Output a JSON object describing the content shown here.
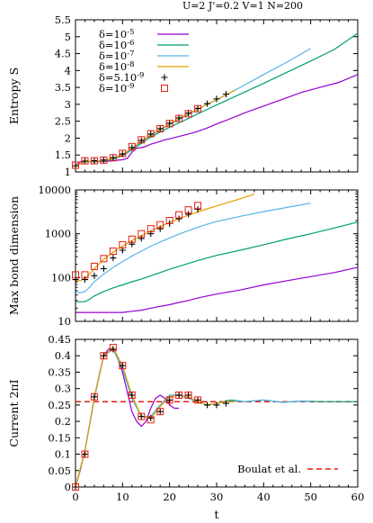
{
  "figure_title": "U=2  J'=0.2  V=1 N=200",
  "colors": {
    "d5": "#9400d3",
    "d6": "#009e73",
    "d7": "#56b4e9",
    "d8": "#e69f00",
    "plus": "#000000",
    "square": "#e51e10",
    "boulat": "#e51e10"
  },
  "chart_data": [
    {
      "type": "line",
      "id": "entropy",
      "ylabel": "Entropy S",
      "xlim": [
        0,
        60
      ],
      "ylim": [
        1,
        5.5
      ],
      "xticks": [],
      "yticks": [
        "1",
        "1.5",
        "2",
        "2.5",
        "3",
        "3.5",
        "4",
        "4.5",
        "5",
        "5.5"
      ],
      "legend": {
        "placement": "top-left",
        "entries": [
          {
            "key": "d5",
            "label_base": "δ=10",
            "label_sup": "-5",
            "style": "line"
          },
          {
            "key": "d6",
            "label_base": "δ=10",
            "label_sup": "-6",
            "style": "line"
          },
          {
            "key": "d7",
            "label_base": "δ=10",
            "label_sup": "-7",
            "style": "line"
          },
          {
            "key": "d8",
            "label_base": "δ=10",
            "label_sup": "-8",
            "style": "line"
          },
          {
            "key": "plus",
            "label_base": "δ=5.10",
            "label_sup": "-9",
            "style": "plus"
          },
          {
            "key": "square",
            "label_base": "δ=10",
            "label_sup": "-9",
            "style": "square"
          }
        ]
      },
      "series": [
        {
          "key": "d5",
          "x": [
            0,
            1,
            2,
            3,
            4,
            5,
            6,
            7,
            8,
            9,
            10,
            11,
            12,
            13,
            14,
            15,
            16,
            17,
            18,
            19,
            20,
            22,
            24,
            26,
            28,
            30,
            33,
            36,
            40,
            44,
            48,
            52,
            56,
            60
          ],
          "y": [
            1.18,
            1.3,
            1.32,
            1.31,
            1.3,
            1.3,
            1.31,
            1.32,
            1.33,
            1.35,
            1.36,
            1.4,
            1.58,
            1.7,
            1.72,
            1.76,
            1.82,
            1.86,
            1.9,
            1.95,
            1.98,
            2.05,
            2.12,
            2.2,
            2.3,
            2.42,
            2.58,
            2.75,
            2.95,
            3.15,
            3.35,
            3.5,
            3.65,
            3.88
          ]
        },
        {
          "key": "d6",
          "x": [
            0,
            2,
            4,
            6,
            8,
            10,
            12,
            14,
            16,
            18,
            20,
            22,
            24,
            26,
            28,
            30,
            35,
            40,
            45,
            50,
            55,
            60
          ],
          "y": [
            1.18,
            1.3,
            1.3,
            1.32,
            1.38,
            1.48,
            1.65,
            1.85,
            2.03,
            2.18,
            2.32,
            2.45,
            2.58,
            2.72,
            2.85,
            2.98,
            3.3,
            3.62,
            3.95,
            4.28,
            4.62,
            5.1
          ]
        },
        {
          "key": "d7",
          "x": [
            0,
            2,
            4,
            6,
            8,
            10,
            12,
            14,
            16,
            18,
            20,
            22,
            24,
            26,
            28,
            30,
            35,
            40,
            45,
            50
          ],
          "y": [
            1.18,
            1.31,
            1.32,
            1.33,
            1.4,
            1.5,
            1.68,
            1.9,
            2.08,
            2.24,
            2.4,
            2.55,
            2.7,
            2.85,
            3.0,
            3.13,
            3.5,
            3.88,
            4.25,
            4.65
          ]
        },
        {
          "key": "d8",
          "x": [
            0,
            2,
            4,
            6,
            8,
            10,
            12,
            14,
            16,
            18,
            20,
            22,
            24,
            26,
            28,
            30,
            32,
            34
          ],
          "y": [
            1.18,
            1.31,
            1.32,
            1.34,
            1.4,
            1.52,
            1.7,
            1.92,
            2.1,
            2.26,
            2.42,
            2.58,
            2.72,
            2.86,
            3.0,
            3.14,
            3.28,
            3.42
          ]
        },
        {
          "key": "plus",
          "style": "plus",
          "x": [
            0,
            2,
            4,
            6,
            8,
            10,
            12,
            14,
            16,
            18,
            20,
            22,
            24,
            26,
            28,
            30,
            32
          ],
          "y": [
            1.18,
            1.32,
            1.33,
            1.35,
            1.42,
            1.53,
            1.72,
            1.93,
            2.12,
            2.28,
            2.44,
            2.6,
            2.74,
            2.88,
            3.02,
            3.16,
            3.3
          ]
        },
        {
          "key": "square",
          "style": "square",
          "x": [
            0,
            2,
            4,
            6,
            8,
            10,
            12,
            14,
            16,
            18,
            20,
            22,
            24,
            26
          ],
          "y": [
            1.2,
            1.33,
            1.33,
            1.35,
            1.42,
            1.55,
            1.75,
            1.95,
            2.13,
            2.28,
            2.43,
            2.58,
            2.72,
            2.87
          ]
        }
      ]
    },
    {
      "type": "line",
      "id": "bond",
      "ylabel": "Max bond dimension",
      "yscale": "log",
      "xlim": [
        0,
        60
      ],
      "ylim": [
        10,
        10000
      ],
      "xticks": [],
      "yticks": [
        "10",
        "100",
        "1000",
        "10000"
      ],
      "ytick_values": [
        10,
        100,
        1000,
        10000
      ],
      "series": [
        {
          "key": "d5",
          "x": [
            0,
            2,
            4,
            6,
            8,
            10,
            12,
            14,
            16,
            18,
            20,
            22,
            24,
            26,
            28,
            30,
            35,
            40,
            45,
            50,
            55,
            60
          ],
          "y": [
            16,
            16,
            16,
            16,
            16,
            16,
            17,
            18,
            20,
            22,
            24,
            27,
            30,
            34,
            38,
            42,
            52,
            68,
            85,
            105,
            130,
            170
          ]
        },
        {
          "key": "d6",
          "x": [
            0,
            1,
            2,
            3,
            4,
            6,
            8,
            10,
            12,
            14,
            16,
            18,
            20,
            22,
            24,
            26,
            28,
            30,
            35,
            40,
            45,
            50,
            55,
            60
          ],
          "y": [
            28,
            28,
            28,
            32,
            38,
            48,
            58,
            68,
            80,
            92,
            110,
            130,
            155,
            180,
            210,
            245,
            280,
            320,
            420,
            560,
            760,
            1000,
            1350,
            1850
          ]
        },
        {
          "key": "d7",
          "x": [
            0,
            1,
            2,
            3,
            4,
            6,
            8,
            10,
            12,
            14,
            16,
            18,
            20,
            22,
            24,
            26,
            28,
            30,
            35,
            40,
            45,
            50
          ],
          "y": [
            45,
            45,
            48,
            60,
            80,
            120,
            170,
            230,
            310,
            400,
            520,
            650,
            800,
            980,
            1180,
            1400,
            1650,
            1900,
            2500,
            3200,
            4000,
            5000
          ]
        },
        {
          "key": "d8",
          "x": [
            0,
            1,
            2,
            3,
            4,
            6,
            8,
            10,
            12,
            14,
            16,
            18,
            20,
            22,
            24,
            26,
            28,
            30,
            32,
            34,
            36,
            38
          ],
          "y": [
            85,
            85,
            95,
            120,
            160,
            260,
            380,
            520,
            700,
            900,
            1150,
            1450,
            1800,
            2200,
            2650,
            3150,
            3700,
            4300,
            5000,
            5800,
            6800,
            8000
          ]
        },
        {
          "key": "plus",
          "style": "plus",
          "x": [
            0,
            2,
            4,
            6,
            8,
            10,
            12,
            14,
            16,
            18,
            20,
            22,
            24,
            26
          ],
          "y": [
            90,
            90,
            110,
            160,
            280,
            420,
            580,
            780,
            1000,
            1300,
            1700,
            2200,
            2800,
            3600
          ]
        },
        {
          "key": "square",
          "style": "square",
          "x": [
            0,
            2,
            4,
            6,
            8,
            10,
            12,
            14,
            16,
            18,
            20,
            22,
            24,
            26
          ],
          "y": [
            115,
            115,
            180,
            270,
            400,
            560,
            750,
            1000,
            1300,
            1600,
            2000,
            2700,
            3500,
            4400
          ]
        }
      ]
    },
    {
      "type": "line",
      "id": "current",
      "ylabel": "Current 2πI",
      "xlabel": "t",
      "xlim": [
        0,
        60
      ],
      "ylim": [
        0,
        0.45
      ],
      "xticks": [
        "0",
        "10",
        "20",
        "30",
        "40",
        "50",
        "60"
      ],
      "xtick_values": [
        0,
        10,
        20,
        30,
        40,
        50,
        60
      ],
      "yticks": [
        "0",
        "0.05",
        "0.1",
        "0.15",
        "0.2",
        "0.25",
        "0.3",
        "0.35",
        "0.4",
        "0.45"
      ],
      "legend": {
        "placement": "bottom-right",
        "entries": [
          {
            "key": "boulat",
            "label": "Boulat et al.",
            "style": "dashed"
          }
        ]
      },
      "reference": {
        "key": "boulat",
        "y": 0.26
      },
      "series": [
        {
          "key": "d5",
          "x": [
            0,
            1,
            2,
            3,
            4,
            5,
            6,
            7,
            8,
            9,
            10,
            11,
            12,
            13,
            14,
            15,
            16,
            17,
            18,
            19,
            20,
            21,
            22
          ],
          "y": [
            0,
            0.05,
            0.11,
            0.19,
            0.27,
            0.34,
            0.4,
            0.42,
            0.42,
            0.39,
            0.35,
            0.29,
            0.23,
            0.2,
            0.185,
            0.2,
            0.24,
            0.27,
            0.28,
            0.27,
            0.25,
            0.24,
            0.24
          ]
        },
        {
          "key": "d6",
          "x": [
            0,
            2,
            4,
            6,
            8,
            10,
            12,
            14,
            16,
            18,
            20,
            22,
            24,
            26,
            28,
            30,
            33,
            36,
            40,
            44,
            48,
            52,
            56,
            60
          ],
          "y": [
            0,
            0.11,
            0.27,
            0.4,
            0.42,
            0.36,
            0.27,
            0.215,
            0.215,
            0.25,
            0.28,
            0.28,
            0.27,
            0.26,
            0.25,
            0.255,
            0.265,
            0.26,
            0.265,
            0.258,
            0.262,
            0.26,
            0.26,
            0.26
          ]
        },
        {
          "key": "d7",
          "x": [
            0,
            2,
            4,
            6,
            8,
            10,
            12,
            14,
            16,
            18,
            20,
            22,
            24,
            26,
            28,
            30,
            33,
            36,
            40,
            44,
            48,
            50
          ],
          "y": [
            0,
            0.11,
            0.27,
            0.4,
            0.42,
            0.36,
            0.27,
            0.215,
            0.215,
            0.25,
            0.28,
            0.28,
            0.27,
            0.26,
            0.25,
            0.255,
            0.262,
            0.26,
            0.265,
            0.258,
            0.262,
            0.26
          ]
        },
        {
          "key": "d8",
          "x": [
            0,
            2,
            4,
            6,
            8,
            10,
            12,
            14,
            16,
            18,
            20,
            22,
            24,
            26,
            28,
            30,
            32,
            34
          ],
          "y": [
            0,
            0.11,
            0.275,
            0.4,
            0.425,
            0.37,
            0.28,
            0.215,
            0.21,
            0.245,
            0.275,
            0.28,
            0.275,
            0.26,
            0.25,
            0.255,
            0.26,
            0.26
          ]
        },
        {
          "key": "plus",
          "style": "plus",
          "x": [
            0,
            2,
            4,
            6,
            8,
            10,
            12,
            14,
            16,
            18,
            20,
            22,
            24,
            26,
            28,
            30,
            32
          ],
          "y": [
            0,
            0.1,
            0.275,
            0.4,
            0.42,
            0.37,
            0.28,
            0.215,
            0.21,
            0.23,
            0.265,
            0.28,
            0.28,
            0.265,
            0.25,
            0.25,
            0.255
          ]
        },
        {
          "key": "square",
          "style": "square",
          "x": [
            0,
            2,
            4,
            6,
            8,
            10,
            12,
            14,
            16,
            18,
            20,
            22,
            24,
            26
          ],
          "y": [
            0,
            0.1,
            0.275,
            0.4,
            0.425,
            0.37,
            0.28,
            0.215,
            0.205,
            0.23,
            0.265,
            0.28,
            0.28,
            0.265
          ]
        }
      ]
    }
  ]
}
